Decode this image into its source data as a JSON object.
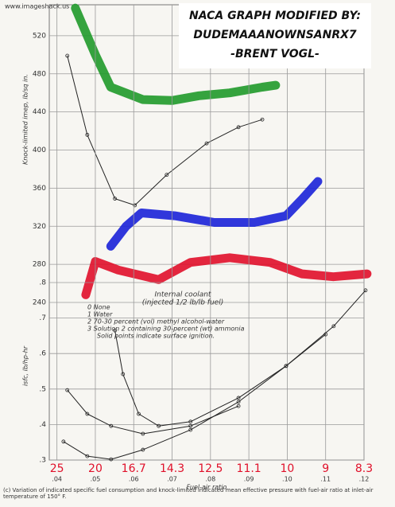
{
  "watermark": "www.imageshack.us",
  "title_lines": [
    "NACA GRAPH MODIFIED BY:",
    "DUDEMAAANOWNSANRX7",
    "-BRENT VOGL-"
  ],
  "annotation": [
    "Internal coolant",
    "(injected 1/2 lb/lb fuel)"
  ],
  "legend": [
    "0   None",
    "1   Water",
    "2   70-30 percent (vol) methyl alcohol-water",
    "3   Solution 2 containing 30-percent (wt) ammonia",
    "Solid points indicate surface ignition."
  ],
  "afr_labels": [
    25,
    20,
    16.7,
    14.3,
    12.5,
    11.1,
    10,
    9,
    8.3
  ],
  "caption": "(c) Variation of indicated specific fuel consumption and knock-limited indicated mean effective pressure with fuel-air ratio at inlet-air temperature of 150° F.",
  "chart_data": [
    {
      "type": "line",
      "y_label": "Knock-limited imep, lb/sq in.",
      "xlim": [
        0.038,
        0.12
      ],
      "ylim": [
        240,
        550
      ],
      "yticks": [
        240,
        280,
        320,
        360,
        400,
        440,
        480,
        520
      ],
      "series": [
        {
          "color": "#1f9a2a",
          "highlight": true,
          "x": [
            0.0448,
            0.05,
            0.054,
            0.0624,
            0.07,
            0.077,
            0.085,
            0.0935,
            0.097
          ],
          "values": [
            549,
            500,
            466,
            453,
            452,
            457,
            460,
            466,
            468
          ]
        },
        {
          "color": "#1a22d8",
          "highlight": true,
          "x": [
            0.054,
            0.058,
            0.062,
            0.0707,
            0.081,
            0.0914,
            0.0997,
            0.104,
            0.108
          ],
          "values": [
            299,
            320,
            334,
            331,
            324,
            324,
            331,
            349,
            367
          ]
        },
        {
          "color": "#e0102a",
          "highlight": true,
          "x": [
            0.0475,
            0.05,
            0.056,
            0.0665,
            0.0748,
            0.085,
            0.0955,
            0.1038,
            0.112,
            0.1208
          ],
          "values": [
            248,
            283,
            274,
            264,
            282,
            287,
            282,
            270,
            267,
            270
          ]
        },
        {
          "color": "#222222",
          "highlight": false,
          "x": [
            0.0427,
            0.0479,
            0.0551,
            0.0603,
            0.0686,
            0.079,
            0.0873,
            0.0935
          ],
          "values": [
            499,
            416,
            349,
            342,
            374,
            407,
            424,
            432
          ]
        }
      ]
    },
    {
      "type": "line",
      "y_label": "isfc, lb/hp-hr",
      "x_label": "Fuel-air ratio",
      "xlim": [
        0.038,
        0.12
      ],
      "ylim": [
        0.3,
        0.8
      ],
      "xticks": [
        {
          "value": 0.04,
          "label": ".04"
        },
        {
          "value": 0.05,
          "label": ".05"
        },
        {
          "value": 0.06,
          "label": ".06"
        },
        {
          "value": 0.07,
          "label": ".07"
        },
        {
          "value": 0.08,
          "label": ".08"
        },
        {
          "value": 0.09,
          "label": ".09"
        },
        {
          "value": 0.1,
          "label": ".10"
        },
        {
          "value": 0.11,
          "label": ".11"
        },
        {
          "value": 0.12,
          "label": ".12"
        }
      ],
      "yticks": [
        {
          "value": 0.3,
          "label": ".3"
        },
        {
          "value": 0.4,
          "label": ".4"
        },
        {
          "value": 0.5,
          "label": ".5"
        },
        {
          "value": 0.6,
          "label": ".6"
        },
        {
          "value": 0.7,
          "label": ".7"
        },
        {
          "value": 0.8,
          "label": ".8"
        }
      ],
      "series": [
        {
          "color": "#222222",
          "highlight": false,
          "x": [
            0.0551,
            0.0572,
            0.0613,
            0.0665,
            0.0748,
            0.0873,
            0.0997,
            0.1121,
            0.1204
          ],
          "values": [
            0.665,
            0.542,
            0.43,
            0.396,
            0.408,
            0.475,
            0.565,
            0.677,
            0.778
          ]
        },
        {
          "color": "#222222",
          "highlight": false,
          "x": [
            0.0427,
            0.0479,
            0.0541,
            0.0624,
            0.0748,
            0.0873
          ],
          "values": [
            0.497,
            0.43,
            0.396,
            0.374,
            0.396,
            0.452
          ]
        },
        {
          "color": "#222222",
          "highlight": false,
          "x": [
            0.0417,
            0.0479,
            0.0541,
            0.0624,
            0.0748,
            0.0873,
            0.0997,
            0.11
          ],
          "values": [
            0.352,
            0.311,
            0.302,
            0.329,
            0.385,
            0.464,
            0.565,
            0.654
          ]
        }
      ]
    }
  ]
}
